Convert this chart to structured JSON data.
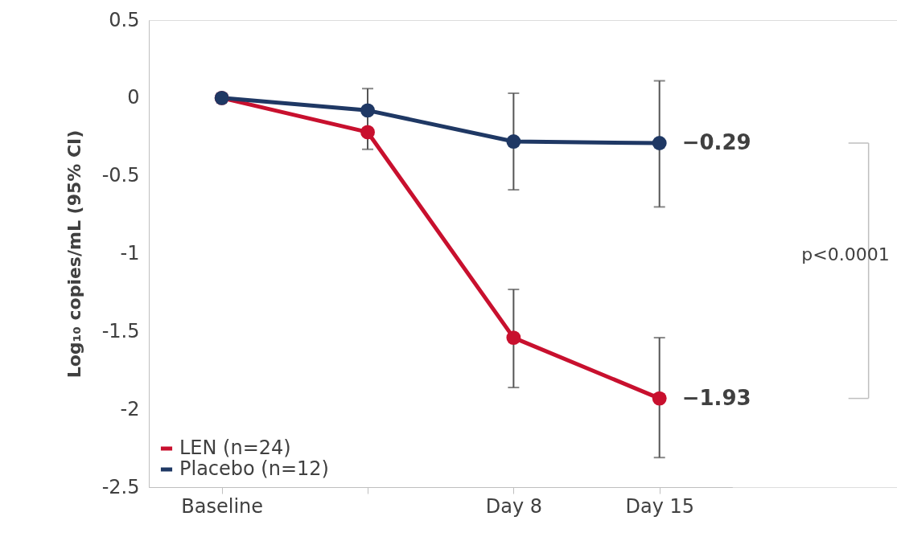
{
  "chart_data": {
    "type": "line",
    "ylabel": "Log₁₀ copies/mL (95% CI)",
    "categories": [
      "Baseline",
      null,
      "Day 8",
      "Day 15"
    ],
    "ylim": [
      -2.5,
      0.5
    ],
    "yticks": [
      0.5,
      0,
      -0.5,
      -1,
      -1.5,
      -2,
      -2.5
    ],
    "series": [
      {
        "name": "LEN (n=24)",
        "color": "#c8102e",
        "values": [
          0,
          -0.22,
          -1.54,
          -1.93
        ],
        "errors": [
          null,
          null,
          [
            -1.86,
            -1.23
          ],
          [
            -2.31,
            -1.54
          ]
        ]
      },
      {
        "name": "Placebo (n=12)",
        "color": "#1f3864",
        "values": [
          0,
          -0.08,
          -0.28,
          -0.29
        ],
        "errors": [
          null,
          [
            -0.33,
            0.06
          ],
          [
            -0.59,
            0.03
          ],
          [
            -0.7,
            0.11
          ]
        ]
      }
    ],
    "annotations": [
      {
        "text": "−0.29",
        "x": "Day 15",
        "y": -0.29
      },
      {
        "text": "−1.93",
        "x": "Day 15",
        "y": -1.93
      },
      "p<0.0001"
    ],
    "marker": "circle",
    "line_style": "solid",
    "grid": false,
    "legend": "bottom left"
  }
}
